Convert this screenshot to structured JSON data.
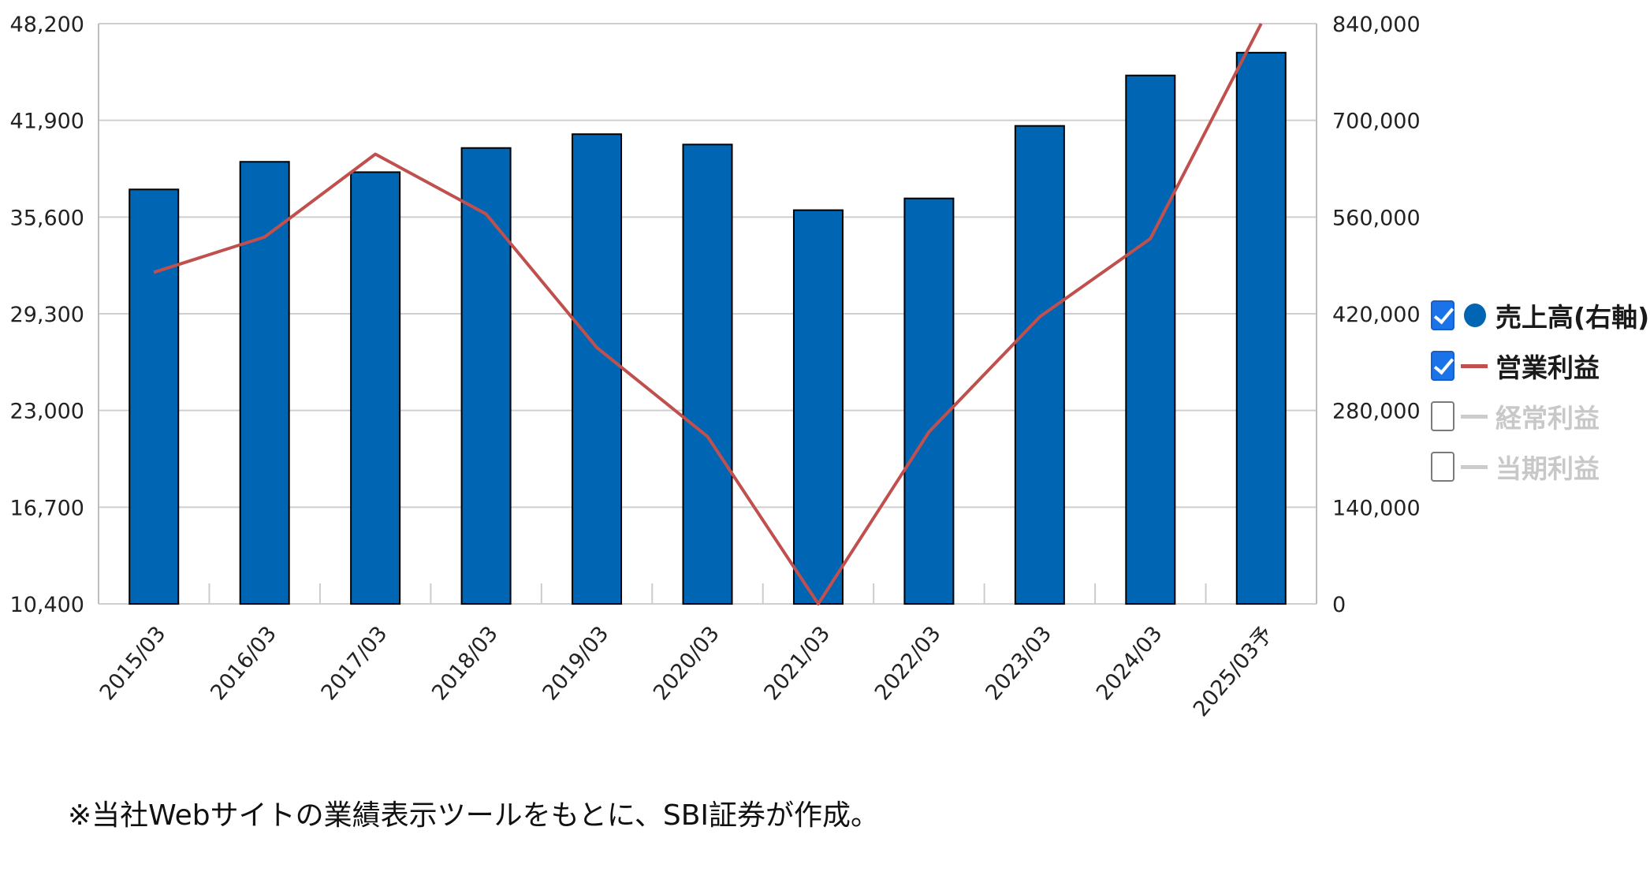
{
  "chart_data": {
    "type": "bar",
    "categories": [
      "2015/03",
      "2016/03",
      "2017/03",
      "2018/03",
      "2019/03",
      "2020/03",
      "2021/03",
      "2022/03",
      "2023/03",
      "2024/03",
      "2025/03予"
    ],
    "series": [
      {
        "name": "売上高(右軸)",
        "type": "bar",
        "axis": "right",
        "color": "#0066b3",
        "values": [
          600000,
          640000,
          625000,
          660000,
          680000,
          665000,
          570000,
          587000,
          692000,
          765000,
          798000
        ]
      },
      {
        "name": "営業利益",
        "type": "line",
        "axis": "left",
        "color": "#c0504d",
        "values": [
          32000,
          34300,
          39700,
          35800,
          27100,
          21300,
          10400,
          21600,
          29100,
          34200,
          48200
        ]
      }
    ],
    "left_axis": {
      "min": 10400,
      "max": 48200,
      "ticks": [
        "48,200",
        "41,900",
        "35,600",
        "29,300",
        "23,000",
        "16,700",
        "10,400"
      ]
    },
    "right_axis": {
      "min": 0,
      "max": 840000,
      "ticks": [
        "840,000",
        "700,000",
        "560,000",
        "420,000",
        "280,000",
        "140,000",
        "0"
      ]
    },
    "grid": true,
    "legend_position": "right"
  },
  "legend": [
    {
      "label": "売上高(右軸)",
      "checked": true,
      "symbol": "dot"
    },
    {
      "label": "営業利益",
      "checked": true,
      "symbol": "red-line"
    },
    {
      "label": "経常利益",
      "checked": false,
      "symbol": "gray-line"
    },
    {
      "label": "当期利益",
      "checked": false,
      "symbol": "gray-line"
    }
  ],
  "note": "※当社Webサイトの業績表示ツールをもとに、SBI証券が作成。"
}
